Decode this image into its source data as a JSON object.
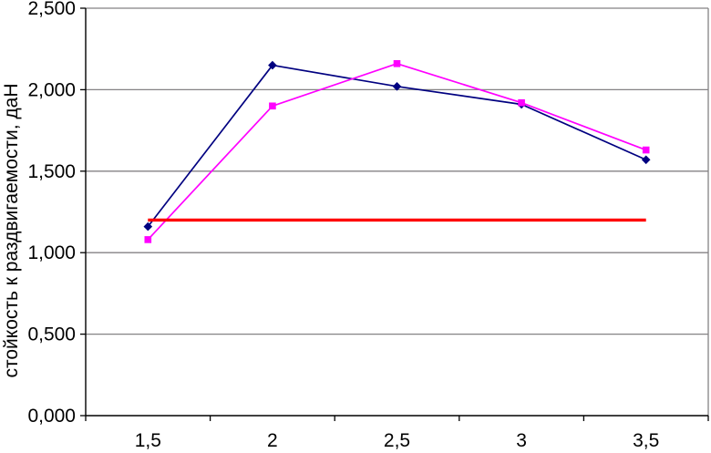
{
  "page": {
    "background": "#FFFFFF",
    "description": "Line chart of seam slippage resistance versus stitch density"
  },
  "chart_data": {
    "type": "line",
    "title": "",
    "xlabel": "",
    "ylabel": "стойкость к раздвигаемости, даН",
    "categories": [
      "1,5",
      "2",
      "2,5",
      "3",
      "3,5"
    ],
    "x_numeric": [
      1.5,
      2,
      2.5,
      3,
      3.5
    ],
    "y_tick_labels": [
      "0,000",
      "0,500",
      "1,000",
      "1,500",
      "2,000",
      "2,500"
    ],
    "ylim": [
      0,
      2.5
    ],
    "y_major_step": 0.5,
    "decimal_separator": ",",
    "grid": "horizontal-major",
    "legend_position": "none",
    "plot_border": true,
    "colors": {
      "axis": "#000000",
      "gridline": "#848284",
      "plot_border": "#848284",
      "text": "#000000",
      "background": "#FFFFFF"
    },
    "series": [
      {
        "name": "series-1-diamond",
        "marker": "diamond",
        "color": "#000080",
        "line_width": 1.7,
        "values": [
          1.16,
          2.15,
          2.02,
          1.91,
          1.57
        ]
      },
      {
        "name": "series-2-square",
        "marker": "square",
        "color": "#FF00FF",
        "line_width": 1.7,
        "values": [
          1.08,
          1.9,
          2.16,
          1.92,
          1.63
        ]
      },
      {
        "name": "reference-level-line",
        "marker": "none",
        "color": "#FF0000",
        "line_width": 3.4,
        "values": [
          1.2,
          1.2,
          1.2,
          1.2,
          1.2
        ]
      }
    ]
  }
}
